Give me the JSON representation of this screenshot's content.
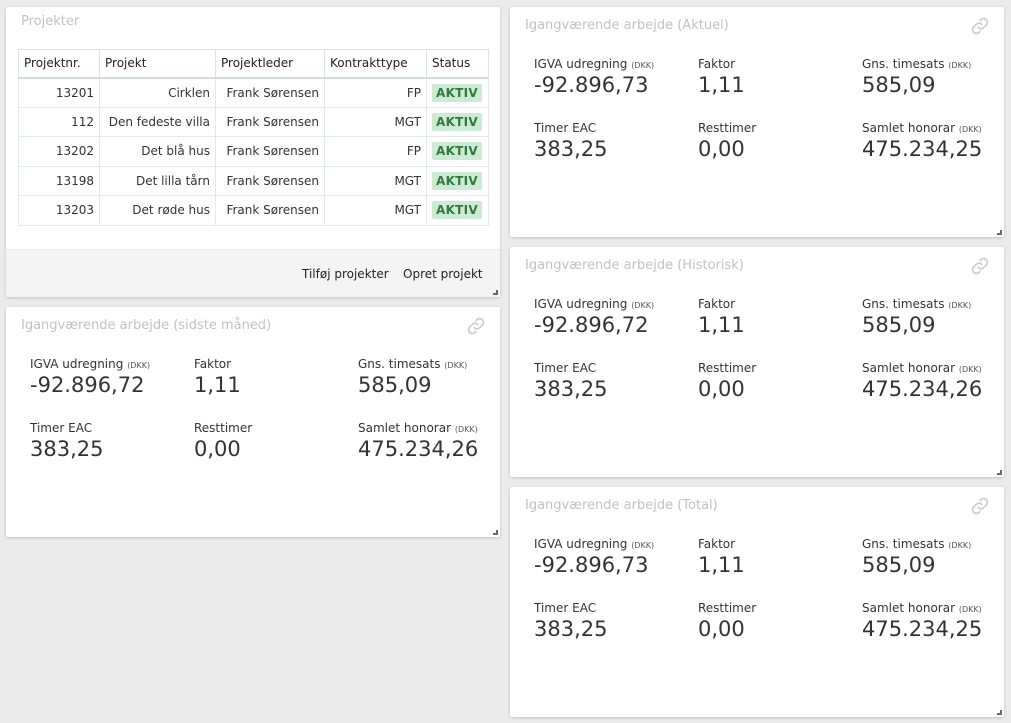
{
  "projects": {
    "title": "Projekter",
    "columns": [
      "Projektnr.",
      "Projekt",
      "Projektleder",
      "Kontrakttype",
      "Status"
    ],
    "rows": [
      {
        "nr": "13201",
        "name": "Cirklen",
        "leader": "Frank Sørensen",
        "type": "FP",
        "status": "AKTIV"
      },
      {
        "nr": "112",
        "name": "Den fedeste villa",
        "leader": "Frank Sørensen",
        "type": "MGT",
        "status": "AKTIV"
      },
      {
        "nr": "13202",
        "name": "Det blå hus",
        "leader": "Frank Sørensen",
        "type": "FP",
        "status": "AKTIV"
      },
      {
        "nr": "13198",
        "name": "Det lilla tårn",
        "leader": "Frank Sørensen",
        "type": "MGT",
        "status": "AKTIV"
      },
      {
        "nr": "13203",
        "name": "Det røde hus",
        "leader": "Frank Sørensen",
        "type": "MGT",
        "status": "AKTIV"
      }
    ],
    "add_label": "Tilføj projekter",
    "create_label": "Opret projekt"
  },
  "labels": {
    "igva": "IGVA udregning",
    "faktor": "Faktor",
    "timesats": "Gns. timesats",
    "timer_eac": "Timer EAC",
    "resttimer": "Resttimer",
    "honorar": "Samlet honorar",
    "unit": "(DKK)"
  },
  "wip_last_month": {
    "title": "Igangværende arbejde (sidste måned)",
    "igva": "-92.896,72",
    "faktor": "1,11",
    "timesats": "585,09",
    "timer_eac": "383,25",
    "resttimer": "0,00",
    "honorar": "475.234,26"
  },
  "wip_current": {
    "title": "Igangværende arbejde (Aktuel)",
    "igva": "-92.896,73",
    "faktor": "1,11",
    "timesats": "585,09",
    "timer_eac": "383,25",
    "resttimer": "0,00",
    "honorar": "475.234,25"
  },
  "wip_history": {
    "title": "Igangværende arbejde (Historisk)",
    "igva": "-92.896,72",
    "faktor": "1,11",
    "timesats": "585,09",
    "timer_eac": "383,25",
    "resttimer": "0,00",
    "honorar": "475.234,26"
  },
  "wip_total": {
    "title": "Igangværende arbejde (Total)",
    "igva": "-92.896,73",
    "faktor": "1,11",
    "timesats": "585,09",
    "timer_eac": "383,25",
    "resttimer": "0,00",
    "honorar": "475.234,25"
  }
}
